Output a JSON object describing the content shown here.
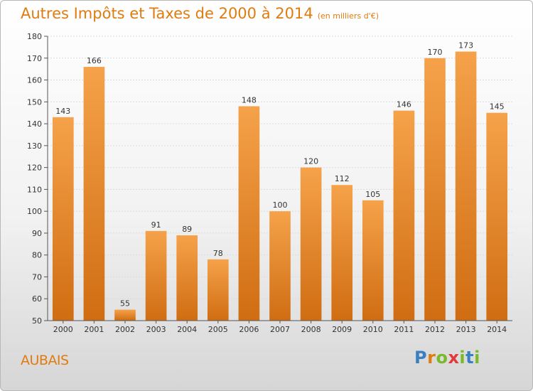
{
  "title": "Autres Impôts et Taxes de 2000 à 2014",
  "subtitle": "(en milliers d'€)",
  "commune": "AUBAIS",
  "logo": {
    "letters": [
      "P",
      "r",
      "o",
      "x",
      "i",
      "t",
      "i"
    ],
    "colors": [
      "#3a7fc1",
      "#e07b10",
      "#7ab929",
      "#e03a3a",
      "#7ab929",
      "#3a7fc1",
      "#7ab929"
    ]
  },
  "colors": {
    "bar_top": "#f5a24a",
    "bar_bottom": "#d06d12",
    "accent": "#e07b10",
    "axis": "#555555",
    "grid": "#dcdcdc"
  },
  "chart_data": {
    "type": "bar",
    "categories": [
      "2000",
      "2001",
      "2002",
      "2003",
      "2004",
      "2005",
      "2006",
      "2007",
      "2008",
      "2009",
      "2010",
      "2011",
      "2012",
      "2013",
      "2014"
    ],
    "values": [
      143,
      166,
      55,
      91,
      89,
      78,
      148,
      100,
      120,
      112,
      105,
      146,
      170,
      173,
      145
    ],
    "ylim": [
      50,
      180
    ],
    "yticks": [
      50,
      60,
      70,
      80,
      90,
      100,
      110,
      120,
      130,
      140,
      150,
      160,
      170,
      180
    ],
    "title": "Autres Impôts et Taxes de 2000 à 2014",
    "subtitle": "(en milliers d'€)",
    "xlabel": "",
    "ylabel": "",
    "grid": true
  }
}
